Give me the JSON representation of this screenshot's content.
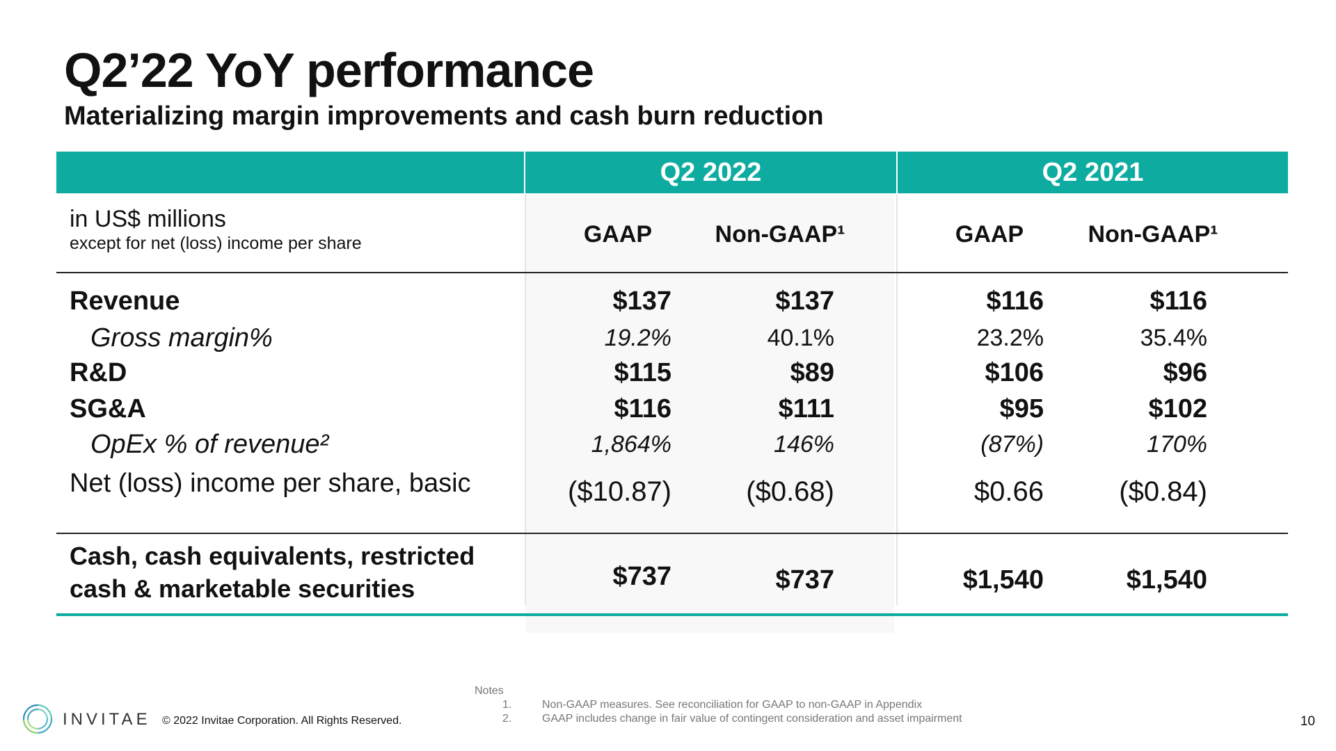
{
  "title": "Q2’22 YoY performance",
  "subtitle": "Materializing margin improvements and cash burn reduction",
  "header": {
    "group1": "Q2 2022",
    "group2": "Q2 2021"
  },
  "units": {
    "main": "in US$ millions",
    "sub": "except for net (loss) income per share"
  },
  "columns": [
    "GAAP",
    "Non-GAAP¹",
    "GAAP",
    "Non-GAAP¹"
  ],
  "rows": [
    {
      "label": "Revenue",
      "values": [
        "$137",
        "$137",
        "$116",
        "$116"
      ]
    },
    {
      "label": "Gross margin%",
      "values": [
        "19.2%",
        "40.1%",
        "23.2%",
        "35.4%"
      ]
    },
    {
      "label": "R&D",
      "values": [
        "$115",
        "$89",
        "$106",
        "$96"
      ]
    },
    {
      "label": "SG&A",
      "values": [
        "$116",
        "$111",
        "$95",
        "$102"
      ]
    },
    {
      "label": "OpEx % of revenue²",
      "values": [
        "1,864%",
        "146%",
        "(87%)",
        "170%"
      ]
    },
    {
      "label": "Net (loss) income per share, basic",
      "values": [
        "($10.87)",
        "($0.68)",
        "$0.66",
        "($0.84)"
      ]
    },
    {
      "label_line1": "Cash, cash equivalents, restricted",
      "label_line2": "cash & marketable securities",
      "values": [
        "$737",
        "$737",
        "$1,540",
        "$1,540"
      ]
    }
  ],
  "footer": {
    "brand": "INVITAE",
    "copyright": "© 2022 Invitae Corporation. All Rights Reserved.",
    "notes_label": "Notes",
    "notes": [
      {
        "num": "1.",
        "text": "Non-GAAP measures. See reconciliation for GAAP to non-GAAP in Appendix"
      },
      {
        "num": "2.",
        "text": "GAAP includes change in fair value of contingent consideration and asset impairment"
      }
    ],
    "page_number": "10"
  },
  "colors": {
    "accent": "#0eaca0"
  }
}
